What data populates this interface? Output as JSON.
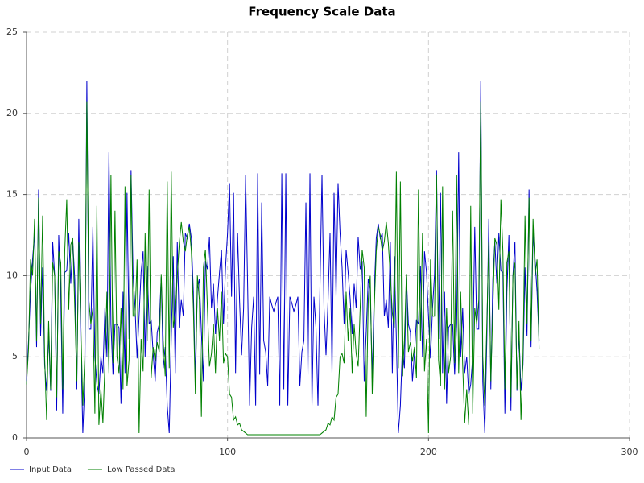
{
  "chart_data": {
    "type": "line",
    "title": "Frequency Scale Data",
    "x": [
      0,
      1,
      2,
      3,
      4,
      5,
      6,
      7,
      8,
      9,
      10,
      11,
      12,
      13,
      14,
      15,
      16,
      17,
      18,
      19,
      20,
      21,
      22,
      23,
      24,
      25,
      26,
      27,
      28,
      29,
      30,
      31,
      32,
      33,
      34,
      35,
      36,
      37,
      38,
      39,
      40,
      41,
      42,
      43,
      44,
      45,
      46,
      47,
      48,
      49,
      50,
      51,
      52,
      53,
      54,
      55,
      56,
      57,
      58,
      59,
      60,
      61,
      62,
      63,
      64,
      65,
      66,
      67,
      68,
      69,
      70,
      71,
      72,
      73,
      74,
      75,
      76,
      77,
      78,
      79,
      80,
      81,
      82,
      83,
      84,
      85,
      86,
      87,
      88,
      89,
      90,
      91,
      92,
      93,
      94,
      95,
      96,
      97,
      98,
      99,
      100,
      101,
      102,
      103,
      104,
      105,
      106,
      107,
      108,
      109,
      110,
      111,
      112,
      113,
      114,
      115,
      116,
      117,
      118,
      119,
      120,
      121,
      122,
      123,
      124,
      125,
      126,
      127,
      128,
      129,
      130,
      131,
      132,
      133,
      134,
      135,
      136,
      137,
      138,
      139,
      140,
      141,
      142,
      143,
      144,
      145,
      146,
      147,
      148,
      149,
      150,
      151,
      152,
      153,
      154,
      155,
      156,
      157,
      158,
      159,
      160,
      161,
      162,
      163,
      164,
      165,
      166,
      167,
      168,
      169,
      170,
      171,
      172,
      173,
      174,
      175,
      176,
      177,
      178,
      179,
      180,
      181,
      182,
      183,
      184,
      185,
      186,
      187,
      188,
      189,
      190,
      191,
      192,
      193,
      194,
      195,
      196,
      197,
      198,
      199,
      200,
      201,
      202,
      203,
      204,
      205,
      206,
      207,
      208,
      209,
      210,
      211,
      212,
      213,
      214,
      215,
      216,
      217,
      218,
      219,
      220,
      221,
      222,
      223,
      224,
      225,
      226,
      227,
      228,
      229,
      230,
      231,
      232,
      233,
      234,
      235,
      236,
      237,
      238,
      239,
      240,
      241,
      242,
      243,
      244,
      245,
      246,
      247,
      248,
      249,
      250,
      251,
      252,
      253,
      254,
      255
    ],
    "series": [
      {
        "name": "Input Data",
        "color": "#0000cc",
        "values": [
          3.5,
          6,
          9,
          11,
          12.6,
          5.6,
          15.3,
          6.3,
          10.5,
          4.5,
          2.9,
          6.5,
          2.9,
          12.1,
          10,
          1.7,
          12.5,
          9,
          1.5,
          10.2,
          10.3,
          12.6,
          9.5,
          12.1,
          9.8,
          3,
          13.5,
          6,
          0.3,
          3.5,
          22,
          6.7,
          6.7,
          13,
          5,
          3.3,
          2.7,
          5,
          4,
          8,
          5,
          17.6,
          7,
          3.9,
          7,
          7,
          6.8,
          2.1,
          9,
          4,
          15.1,
          6.1,
          16.5,
          10.1,
          8,
          4.9,
          7.5,
          10.2,
          11.5,
          5,
          10.6,
          7,
          7.3,
          5.2,
          3.5,
          6.5,
          7,
          9.9,
          4.3,
          5.6,
          2,
          0.3,
          6.1,
          11.2,
          4,
          12.1,
          6.8,
          8.5,
          7.5,
          12.6,
          12.3,
          13.2,
          12.3,
          9,
          3.6,
          9.2,
          9.8,
          6.5,
          3.5,
          10.9,
          10.4,
          12.4,
          8,
          9.5,
          6.4,
          8.6,
          10.2,
          11.6,
          7,
          10.5,
          12.6,
          15.7,
          8.7,
          15.1,
          4,
          12.6,
          8.4,
          5.1,
          8,
          16.2,
          9.4,
          2,
          6.8,
          8.7,
          2,
          16.3,
          3.9,
          14.5,
          6,
          5.3,
          3.2,
          8.7,
          8.2,
          7.8,
          8.3,
          8.7,
          2,
          16.3,
          3,
          16.3,
          2,
          8.7,
          8.3,
          7.8,
          8.2,
          8.7,
          3.2,
          5.3,
          6,
          14.5,
          3.9,
          16.3,
          2,
          8.7,
          6.8,
          2,
          9.4,
          16.2,
          8,
          5.1,
          8.4,
          12.6,
          4,
          15.1,
          8.7,
          15.7,
          12.6,
          10.5,
          7,
          11.6,
          10.2,
          8.6,
          6.4,
          9.5,
          8,
          12.4,
          10.4,
          10.9,
          3.5,
          6.5,
          9.8,
          9.2,
          3.6,
          9,
          12.3,
          13.2,
          12.3,
          12.6,
          7.5,
          8.5,
          6.8,
          12.1,
          4,
          11.2,
          6.1,
          0.3,
          2,
          5.6,
          4.3,
          9.9,
          7,
          6.5,
          3.5,
          5.2,
          7.3,
          7,
          10.6,
          5,
          11.5,
          10.2,
          7.5,
          4.9,
          8,
          10.1,
          16.5,
          6.1,
          15.1,
          4,
          9,
          2.1,
          6.8,
          7,
          7,
          3.9,
          7,
          17.6,
          5,
          8,
          4,
          5,
          2.7,
          3.3,
          5,
          13,
          6.7,
          6.7,
          22,
          3.5,
          0.3,
          6,
          13.5,
          3,
          9.8,
          12.1,
          9.5,
          12.6,
          10.3,
          10.2,
          1.5,
          9,
          12.5,
          1.7,
          10,
          12.1,
          2.9,
          6.5,
          2.9,
          4.5,
          10.5,
          6.3,
          15.3,
          5.6,
          12.6,
          11,
          9,
          6
        ]
      },
      {
        "name": "Low Passed Data",
        "color": "#008000",
        "values": [
          3.3,
          5.5,
          11,
          10,
          13.5,
          6,
          14.8,
          7,
          13.7,
          5,
          1.1,
          7.2,
          3,
          10.8,
          10,
          2.5,
          11.5,
          10.8,
          3,
          11.5,
          14.7,
          7.9,
          11.9,
          12.3,
          8,
          3.5,
          12.1,
          7,
          2,
          5,
          20.7,
          8.5,
          7,
          8,
          1.5,
          14.3,
          0.8,
          3,
          0.9,
          4.5,
          9,
          4,
          16.2,
          4.6,
          14,
          5,
          4,
          8,
          3,
          15.5,
          3.2,
          4.8,
          16.2,
          7.5,
          7.5,
          11,
          0.3,
          6.1,
          4.1,
          12.6,
          6,
          15.3,
          3.7,
          5.6,
          4.7,
          5.9,
          5.3,
          10.1,
          6,
          3.8,
          15.8,
          4.3,
          16.4,
          6.8,
          7.7,
          10,
          12,
          13.3,
          12.1,
          11.5,
          12.5,
          13,
          11.5,
          8,
          2.7,
          10,
          8.5,
          1.3,
          10.5,
          11.6,
          8,
          4.4,
          5.2,
          7,
          4,
          8,
          6,
          9,
          4.6,
          5.2,
          5,
          2.7,
          2.5,
          1.1,
          1.3,
          0.8,
          0.9,
          0.5,
          0.4,
          0.3,
          0.2,
          0.2,
          0.2,
          0.2,
          0.2,
          0.2,
          0.2,
          0.2,
          0.2,
          0.2,
          0.2,
          0.2,
          0.2,
          0.2,
          0.2,
          0.2,
          0.2,
          0.2,
          0.2,
          0.2,
          0.2,
          0.2,
          0.2,
          0.2,
          0.2,
          0.2,
          0.2,
          0.2,
          0.2,
          0.2,
          0.2,
          0.2,
          0.2,
          0.2,
          0.2,
          0.2,
          0.2,
          0.3,
          0.4,
          0.5,
          0.9,
          0.8,
          1.3,
          1.1,
          2.5,
          2.7,
          5,
          5.2,
          4.6,
          9,
          6,
          8,
          4,
          7,
          5.2,
          4.4,
          8,
          11.6,
          10.5,
          1.3,
          8.5,
          10,
          2.7,
          8,
          11.5,
          13,
          12.5,
          11.5,
          12.1,
          13.3,
          12,
          10,
          7.7,
          6.8,
          16.4,
          4.3,
          15.8,
          3.8,
          6,
          10.1,
          5.3,
          5.9,
          4.7,
          5.6,
          3.7,
          15.3,
          6,
          12.6,
          4.1,
          6.1,
          0.3,
          11,
          7.5,
          7.5,
          16.2,
          4.8,
          3.2,
          15.5,
          3,
          8,
          4,
          5,
          14,
          4.6,
          16.2,
          4,
          9,
          4.5,
          0.9,
          3,
          0.8,
          14.3,
          1.5,
          8,
          7,
          8.5,
          20.7,
          5,
          2,
          7,
          12.1,
          3.5,
          8,
          12.3,
          11.9,
          7.9,
          14.7,
          11.5,
          3,
          10.8,
          11.5,
          2.5,
          10,
          10.8,
          3,
          7.2,
          1.1,
          5,
          13.7,
          7,
          14.8,
          6,
          13.5,
          10,
          11,
          5.5
        ]
      }
    ],
    "xlim": [
      0,
      300
    ],
    "xticks": [
      0,
      100,
      200,
      300
    ],
    "ylim": [
      0,
      25
    ],
    "yticks": [
      0,
      5,
      10,
      15,
      20,
      25
    ],
    "grid": true,
    "legend": "bottom"
  }
}
